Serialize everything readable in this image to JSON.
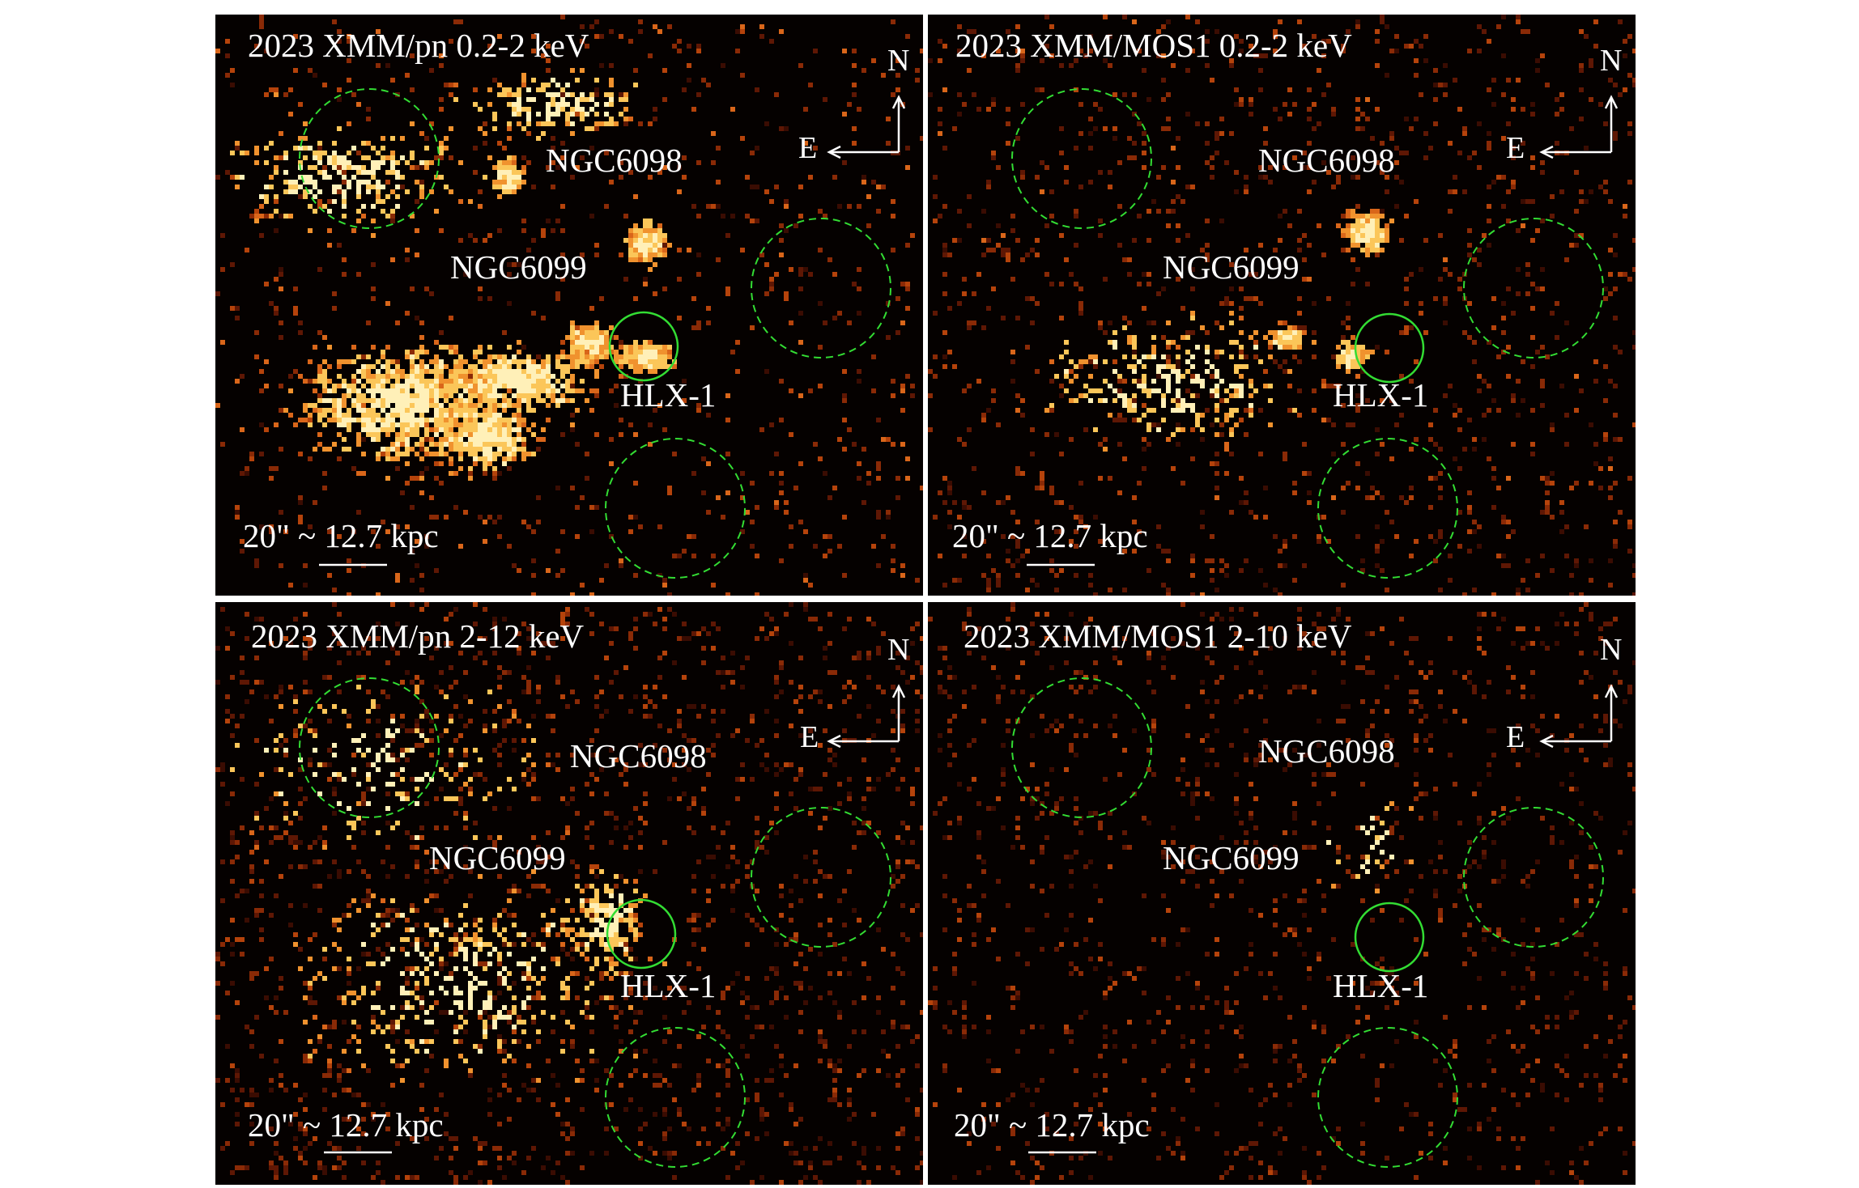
{
  "panels": [
    {
      "title": "2023 XMM/pn 0.2-2 keV",
      "labels": {
        "ngc6098": "NGC6098",
        "ngc6099": "NGC6099",
        "hlx": "HLX-1"
      },
      "compass": {
        "north": "N",
        "east": "E"
      },
      "scalebar": "20\" ~ 12.7 kpc",
      "band": "soft",
      "detector": "pn"
    },
    {
      "title": "2023 XMM/MOS1 0.2-2 keV",
      "labels": {
        "ngc6098": "NGC6098",
        "ngc6099": "NGC6099",
        "hlx": "HLX-1"
      },
      "compass": {
        "north": "N",
        "east": "E"
      },
      "scalebar": "20\" ~ 12.7 kpc",
      "band": "soft",
      "detector": "mos"
    },
    {
      "title": "2023 XMM/pn 2-12 keV",
      "labels": {
        "ngc6098": "NGC6098",
        "ngc6099": "NGC6099",
        "hlx": "HLX-1"
      },
      "compass": {
        "north": "N",
        "east": "E"
      },
      "scalebar": "20\" ~ 12.7 kpc",
      "band": "hard",
      "detector": "pn"
    },
    {
      "title": "2023 XMM/MOS1 2-10 keV",
      "labels": {
        "ngc6098": "NGC6098",
        "ngc6099": "NGC6099",
        "hlx": "HLX-1"
      },
      "compass": {
        "north": "N",
        "east": "E"
      },
      "scalebar": "20\" ~ 12.7 kpc",
      "band": "hard",
      "detector": "mos"
    }
  ],
  "colors": {
    "background": "#050100",
    "source_region": "#33dd33",
    "background_region": "#33dd33",
    "text": "#ffffff"
  }
}
